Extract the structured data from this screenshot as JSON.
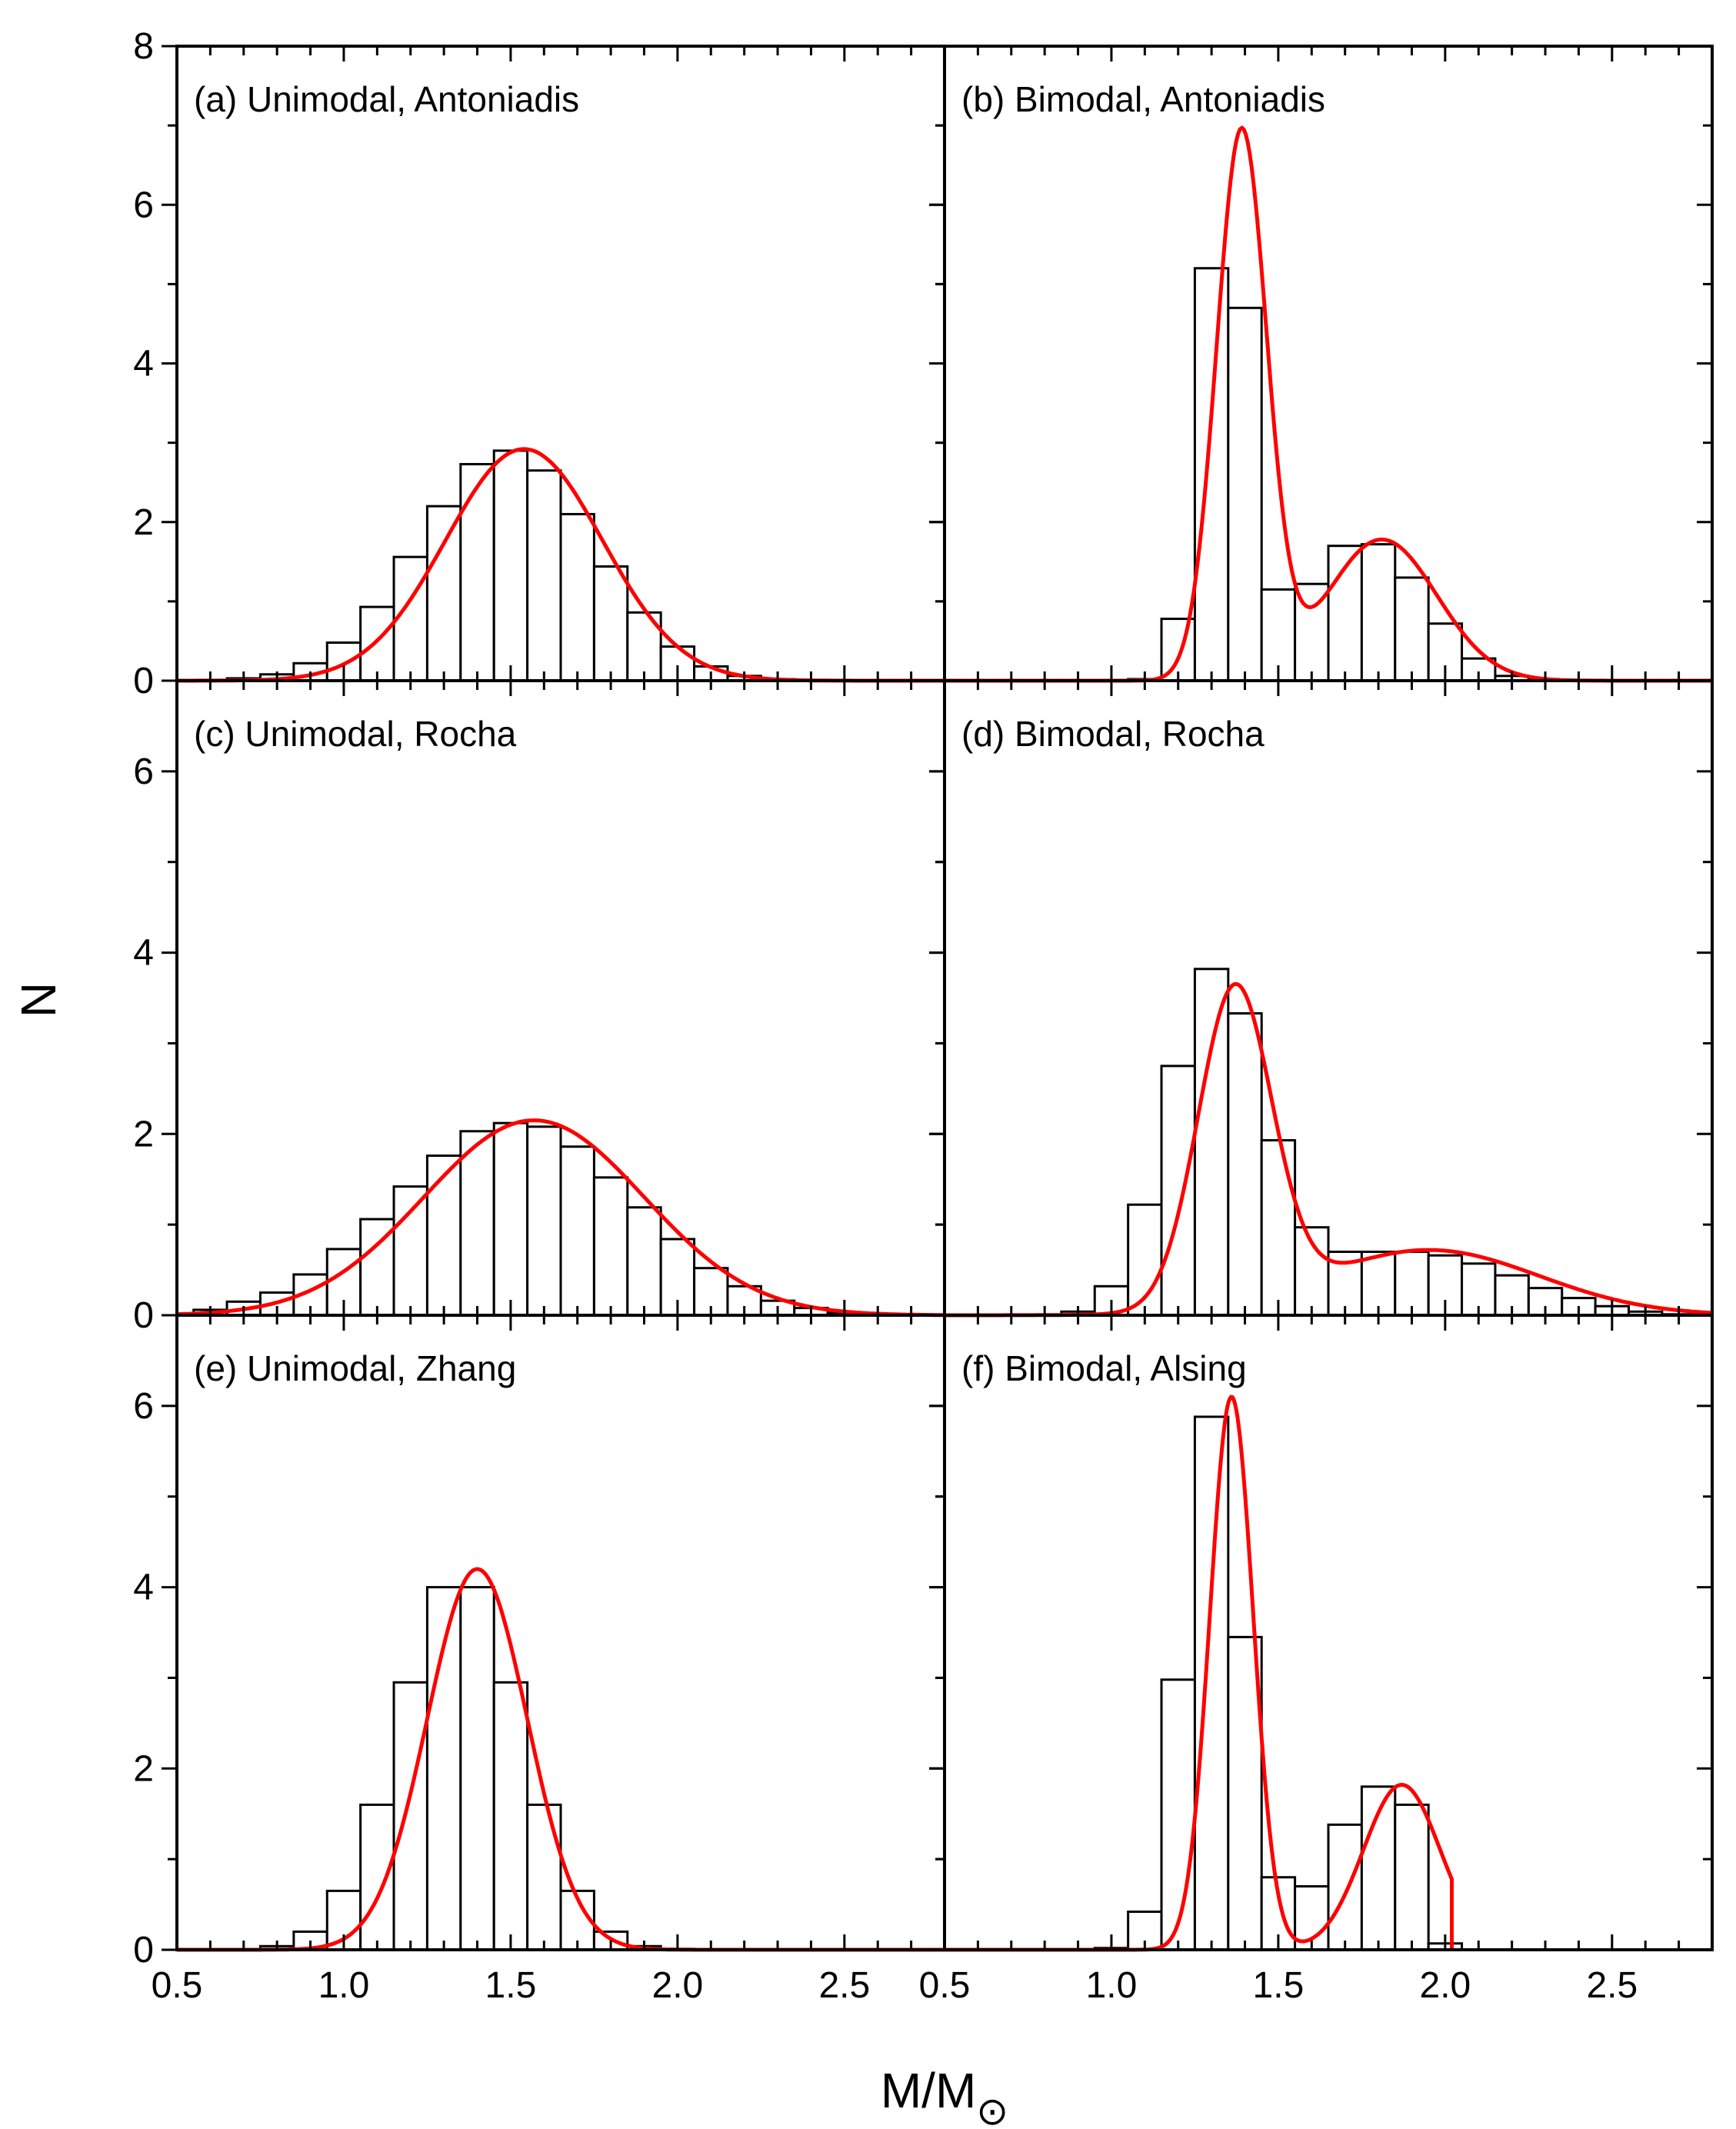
{
  "chart_data": [
    {
      "panel": "a",
      "title": "(a) Unimodal, Antoniadis",
      "type": "bar",
      "x": [
        0.6,
        0.7,
        0.8,
        0.9,
        1.0,
        1.1,
        1.2,
        1.3,
        1.4,
        1.5,
        1.6,
        1.7,
        1.8,
        1.9,
        2.0,
        2.1,
        2.2,
        2.3,
        2.4,
        2.5,
        2.6,
        2.7
      ],
      "values": [
        0.01,
        0.03,
        0.08,
        0.22,
        0.48,
        0.93,
        1.56,
        2.2,
        2.73,
        2.9,
        2.65,
        2.1,
        1.44,
        0.86,
        0.43,
        0.18,
        0.06,
        0.02,
        0.01,
        0,
        0,
        0
      ],
      "fit": {
        "kind": "gaussian",
        "components": [
          {
            "amp": 2.92,
            "mu": 1.54,
            "sigma": 0.235
          }
        ]
      },
      "xlim": [
        0.5,
        2.8
      ],
      "ylim": [
        0,
        8
      ],
      "yticks": [
        0,
        2,
        4,
        6,
        8
      ],
      "ytick_labels": [
        "0",
        "2",
        "4",
        "6",
        "8"
      ]
    },
    {
      "panel": "b",
      "title": "(b) Bimodal, Antoniadis",
      "type": "bar",
      "x": [
        1.1,
        1.2,
        1.3,
        1.4,
        1.5,
        1.6,
        1.7,
        1.8,
        1.9,
        2.0,
        2.1,
        2.2,
        2.3
      ],
      "values": [
        0.02,
        0.78,
        5.2,
        4.7,
        1.15,
        1.22,
        1.7,
        1.72,
        1.3,
        0.72,
        0.28,
        0.06,
        0.01
      ],
      "fit": {
        "kind": "gaussian",
        "components": [
          {
            "amp": 6.9,
            "mu": 1.39,
            "sigma": 0.075
          },
          {
            "amp": 1.78,
            "mu": 1.81,
            "sigma": 0.165
          }
        ]
      },
      "xlim": [
        0.5,
        2.8
      ],
      "ylim": [
        0,
        8
      ],
      "yticks": [
        0,
        2,
        4,
        6,
        8
      ]
    },
    {
      "panel": "c",
      "title": "(c) Unimodal, Rocha",
      "type": "bar",
      "x": [
        0.6,
        0.7,
        0.8,
        0.9,
        1.0,
        1.1,
        1.2,
        1.3,
        1.4,
        1.5,
        1.6,
        1.7,
        1.8,
        1.9,
        2.0,
        2.1,
        2.2,
        2.3,
        2.4,
        2.5,
        2.6,
        2.7
      ],
      "values": [
        0.06,
        0.15,
        0.25,
        0.45,
        0.73,
        1.06,
        1.42,
        1.76,
        2.03,
        2.12,
        2.08,
        1.86,
        1.52,
        1.19,
        0.84,
        0.52,
        0.32,
        0.16,
        0.08,
        0.03,
        0.01,
        0
      ],
      "fit": {
        "kind": "gaussian",
        "components": [
          {
            "amp": 2.15,
            "mu": 1.57,
            "sigma": 0.33
          }
        ]
      },
      "xlim": [
        0.5,
        2.8
      ],
      "ylim": [
        0,
        7
      ],
      "yticks": [
        0,
        2,
        4,
        6
      ],
      "ytick_labels": [
        "0",
        "2",
        "4",
        "6"
      ]
    },
    {
      "panel": "d",
      "title": "(d) Bimodal, Rocha",
      "type": "bar",
      "x": [
        0.9,
        1.0,
        1.1,
        1.2,
        1.3,
        1.4,
        1.5,
        1.6,
        1.7,
        1.8,
        1.9,
        2.0,
        2.1,
        2.2,
        2.3,
        2.4,
        2.5,
        2.6,
        2.7
      ],
      "values": [
        0.04,
        0.32,
        1.22,
        2.75,
        3.82,
        3.33,
        1.93,
        0.97,
        0.7,
        0.7,
        0.7,
        0.66,
        0.57,
        0.44,
        0.3,
        0.19,
        0.1,
        0.04,
        0.01
      ],
      "fit": {
        "kind": "gaussian",
        "components": [
          {
            "amp": 3.5,
            "mu": 1.37,
            "sigma": 0.11
          },
          {
            "amp": 0.72,
            "mu": 1.95,
            "sigma": 0.33
          }
        ]
      },
      "xlim": [
        0.5,
        2.8
      ],
      "ylim": [
        0,
        7
      ],
      "yticks": [
        0,
        2,
        4,
        6
      ]
    },
    {
      "panel": "e",
      "title": "(e) Unimodal, Zhang",
      "type": "bar",
      "x": [
        0.8,
        0.9,
        1.0,
        1.1,
        1.2,
        1.3,
        1.4,
        1.5,
        1.6,
        1.7,
        1.8,
        1.9,
        2.0
      ],
      "values": [
        0.04,
        0.2,
        0.65,
        1.6,
        2.95,
        4.0,
        4.0,
        2.95,
        1.6,
        0.65,
        0.2,
        0.04,
        0.01
      ],
      "fit": {
        "kind": "gaussian",
        "components": [
          {
            "amp": 4.2,
            "mu": 1.4,
            "sigma": 0.15
          }
        ]
      },
      "xlim": [
        0.5,
        2.8
      ],
      "ylim": [
        0,
        7
      ],
      "yticks": [
        0,
        2,
        4,
        6
      ],
      "ytick_labels": [
        "0",
        "2",
        "4",
        "6"
      ],
      "xticks": [
        0.5,
        1.0,
        1.5,
        2.0,
        2.5
      ],
      "xtick_labels": [
        "0.5",
        "1.0",
        "1.5",
        "2.0",
        "2.5"
      ]
    },
    {
      "panel": "f",
      "title": "(f) Bimodal, Alsing",
      "type": "bar",
      "x": [
        1.0,
        1.1,
        1.2,
        1.3,
        1.4,
        1.5,
        1.6,
        1.7,
        1.8,
        1.9,
        2.0
      ],
      "values": [
        0.02,
        0.42,
        2.98,
        5.88,
        3.45,
        0.8,
        0.7,
        1.38,
        1.8,
        1.6,
        0.07
      ],
      "fit": {
        "kind": "gaussian",
        "cutoff": 2.02,
        "components": [
          {
            "amp": 6.1,
            "mu": 1.36,
            "sigma": 0.065
          },
          {
            "amp": 1.82,
            "mu": 1.87,
            "sigma": 0.115
          }
        ]
      },
      "xlim": [
        0.5,
        2.8
      ],
      "ylim": [
        0,
        7
      ],
      "yticks": [
        0,
        2,
        4,
        6
      ],
      "xticks": [
        0.5,
        1.0,
        1.5,
        2.0,
        2.5
      ],
      "xtick_labels": [
        "0.5",
        "1.0",
        "1.5",
        "2.0",
        "2.5"
      ]
    }
  ],
  "axes": {
    "ylabel": "N",
    "xlabel_main": "M/M",
    "xlabel_sub": "⊙"
  },
  "colors": {
    "fit": "#ff0000",
    "bar_edge": "#000000",
    "bar_fill": "#ffffff"
  }
}
